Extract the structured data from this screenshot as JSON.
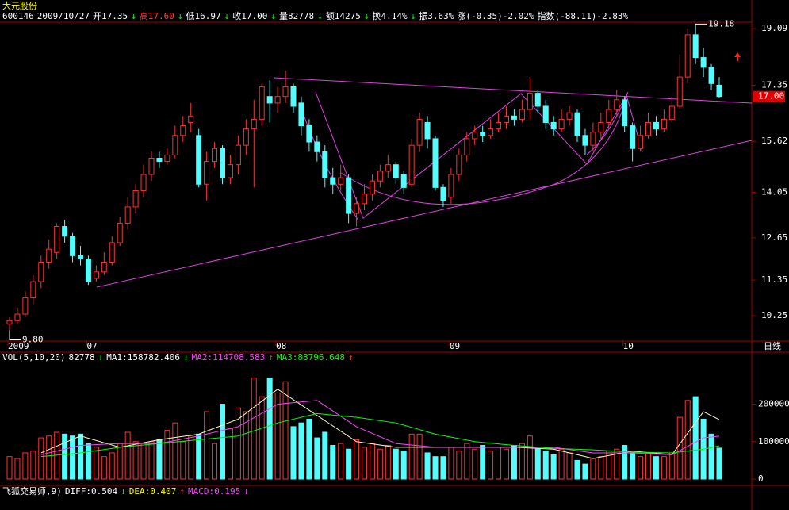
{
  "chart_data": {
    "type": "candlestick",
    "title": "大元股份",
    "info": [
      {
        "text": "600146",
        "color": "#ffffff"
      },
      {
        "text": "2009/10/27",
        "color": "#ffffff"
      },
      {
        "text": "开17.35",
        "color": "#ffffff"
      },
      {
        "text": "↓",
        "color": "#00ff00"
      },
      {
        "text": "高17.60",
        "color": "#ff4040"
      },
      {
        "text": "↓",
        "color": "#00ff00"
      },
      {
        "text": "低16.97",
        "color": "#ffffff"
      },
      {
        "text": "↓",
        "color": "#00ff00"
      },
      {
        "text": "收17.00",
        "color": "#ffffff"
      },
      {
        "text": "↓",
        "color": "#00ff00"
      },
      {
        "text": "量82778",
        "color": "#ffffff"
      },
      {
        "text": "↓",
        "color": "#00ff00"
      },
      {
        "text": "额14275",
        "color": "#ffffff"
      },
      {
        "text": "↓",
        "color": "#00ff00"
      },
      {
        "text": "换4.14%",
        "color": "#ffffff"
      },
      {
        "text": "↓",
        "color": "#00ff00"
      },
      {
        "text": "振3.63%",
        "color": "#ffffff"
      },
      {
        "text": "涨(-0.35)-2.02%",
        "color": "#ffffff"
      },
      {
        "text": "指数(-88.11)-2.83%",
        "color": "#ffffff"
      }
    ],
    "categories": [
      "2009",
      null,
      null,
      null,
      null,
      null,
      null,
      null,
      null,
      null,
      "07",
      null,
      null,
      null,
      null,
      null,
      null,
      null,
      null,
      null,
      null,
      null,
      null,
      null,
      null,
      null,
      null,
      null,
      null,
      null,
      null,
      null,
      null,
      null,
      "08",
      null,
      null,
      null,
      null,
      null,
      null,
      null,
      null,
      null,
      null,
      null,
      null,
      null,
      null,
      null,
      null,
      null,
      null,
      null,
      null,
      null,
      "09",
      null,
      null,
      null,
      null,
      null,
      null,
      null,
      null,
      null,
      null,
      null,
      null,
      null,
      null,
      null,
      null,
      null,
      null,
      null,
      null,
      null,
      "10",
      null,
      null,
      null,
      null,
      null,
      null,
      null,
      null,
      null,
      null,
      null,
      null
    ],
    "period_label": "日线",
    "open": [
      10.0,
      10.1,
      10.3,
      10.8,
      11.3,
      11.9,
      12.2,
      13.0,
      12.7,
      12.1,
      12.0,
      11.4,
      11.6,
      11.9,
      12.5,
      13.1,
      13.6,
      14.1,
      14.6,
      15.1,
      15.0,
      15.2,
      15.8,
      16.2,
      15.8,
      14.3,
      15.0,
      15.4,
      14.5,
      14.9,
      15.5,
      16.0,
      16.3,
      17.0,
      16.8,
      17.0,
      17.3,
      16.8,
      16.1,
      15.6,
      15.3,
      14.5,
      14.3,
      14.5,
      13.4,
      13.7,
      14.0,
      14.4,
      14.7,
      14.9,
      14.6,
      14.3,
      15.5,
      16.2,
      15.7,
      14.2,
      13.9,
      14.6,
      15.2,
      15.7,
      15.9,
      15.8,
      16.0,
      16.2,
      16.4,
      16.3,
      16.6,
      17.1,
      16.7,
      16.2,
      16.0,
      16.3,
      16.5,
      15.8,
      15.5,
      15.9,
      16.2,
      16.6,
      16.9,
      16.1,
      15.4,
      15.8,
      16.2,
      16.0,
      16.3,
      16.7,
      17.6,
      18.9,
      18.2,
      17.9,
      17.35
    ],
    "close": [
      10.1,
      10.3,
      10.8,
      11.3,
      11.9,
      12.3,
      13.0,
      12.7,
      12.1,
      12.0,
      11.3,
      11.6,
      11.9,
      12.5,
      13.1,
      13.6,
      14.1,
      14.6,
      15.1,
      15.0,
      15.2,
      15.8,
      16.1,
      16.4,
      14.3,
      15.0,
      15.4,
      14.5,
      14.9,
      15.5,
      16.0,
      16.3,
      17.3,
      16.8,
      17.0,
      17.3,
      16.7,
      16.1,
      15.6,
      15.3,
      14.5,
      14.3,
      14.5,
      13.4,
      13.7,
      14.0,
      14.4,
      14.7,
      14.9,
      14.5,
      14.2,
      15.5,
      16.3,
      15.7,
      14.2,
      13.8,
      14.6,
      15.2,
      15.7,
      15.9,
      15.8,
      16.0,
      16.2,
      16.4,
      16.3,
      16.6,
      17.1,
      16.7,
      16.2,
      16.0,
      16.3,
      16.5,
      15.8,
      15.5,
      15.9,
      16.2,
      16.6,
      16.9,
      16.1,
      15.4,
      15.8,
      16.2,
      16.0,
      16.3,
      16.7,
      17.6,
      18.9,
      18.2,
      17.9,
      17.4,
      17.0
    ],
    "high": [
      10.2,
      10.5,
      11.0,
      11.5,
      12.1,
      12.6,
      13.1,
      13.2,
      12.8,
      12.4,
      12.1,
      11.8,
      12.2,
      12.7,
      13.3,
      13.9,
      14.3,
      14.9,
      15.3,
      15.3,
      15.4,
      16.1,
      16.4,
      16.8,
      16.0,
      15.3,
      15.6,
      15.5,
      15.2,
      15.8,
      16.3,
      16.9,
      17.4,
      17.5,
      17.3,
      17.8,
      17.4,
      17.0,
      16.3,
      15.8,
      15.5,
      14.8,
      14.9,
      14.6,
      13.9,
      14.3,
      14.6,
      14.9,
      15.2,
      15.0,
      14.7,
      15.7,
      16.5,
      16.4,
      15.8,
      14.3,
      14.8,
      15.4,
      15.9,
      16.1,
      16.1,
      16.3,
      16.5,
      16.7,
      16.6,
      16.9,
      17.6,
      17.2,
      16.9,
      16.4,
      16.6,
      16.7,
      16.6,
      16.0,
      16.2,
      16.5,
      16.9,
      17.2,
      17.0,
      16.2,
      16.1,
      16.5,
      16.4,
      16.6,
      17.0,
      18.3,
      19.1,
      19.18,
      18.5,
      18.0,
      17.6
    ],
    "low": [
      9.8,
      10.0,
      10.2,
      10.6,
      11.1,
      11.7,
      12.0,
      12.5,
      11.9,
      11.8,
      11.2,
      11.3,
      11.5,
      11.8,
      12.4,
      12.9,
      13.4,
      13.9,
      14.4,
      14.8,
      14.9,
      15.1,
      15.6,
      15.9,
      14.2,
      13.8,
      14.8,
      14.3,
      14.3,
      14.6,
      15.2,
      14.2,
      16.1,
      16.2,
      16.5,
      16.8,
      16.5,
      15.8,
      15.3,
      15.0,
      14.2,
      14.0,
      14.1,
      13.1,
      13.0,
      13.5,
      13.8,
      14.2,
      14.5,
      14.3,
      14.0,
      14.2,
      15.3,
      15.4,
      14.1,
      13.6,
      13.7,
      14.4,
      15.0,
      15.5,
      15.6,
      15.7,
      15.9,
      16.0,
      16.1,
      16.2,
      16.3,
      16.5,
      16.0,
      15.8,
      15.9,
      16.1,
      15.6,
      15.2,
      15.3,
      15.7,
      16.0,
      16.4,
      15.9,
      15.0,
      15.3,
      15.7,
      15.8,
      15.9,
      16.2,
      16.6,
      17.4,
      18.0,
      17.6,
      17.2,
      16.97
    ],
    "volume": [
      60000,
      55000,
      70000,
      75000,
      110000,
      115000,
      125000,
      120000,
      115000,
      120000,
      95000,
      85000,
      60000,
      70000,
      95000,
      125000,
      100000,
      95000,
      100000,
      105000,
      130000,
      150000,
      100000,
      115000,
      120000,
      180000,
      95000,
      200000,
      135000,
      190000,
      180000,
      270000,
      220000,
      270000,
      230000,
      260000,
      140000,
      150000,
      160000,
      110000,
      125000,
      90000,
      95000,
      80000,
      105000,
      85000,
      95000,
      80000,
      90000,
      80000,
      75000,
      120000,
      120000,
      70000,
      60000,
      60000,
      85000,
      75000,
      95000,
      80000,
      90000,
      75000,
      85000,
      80000,
      90000,
      95000,
      115000,
      80000,
      75000,
      65000,
      80000,
      70000,
      50000,
      40000,
      55000,
      60000,
      75000,
      80000,
      90000,
      70000,
      60000,
      70000,
      60000,
      60000,
      70000,
      165000,
      210000,
      220000,
      160000,
      120000,
      82778
    ],
    "up_color": "#ff3232",
    "down_color": "#54fcfc",
    "ylim": [
      9.52,
      19.63
    ],
    "yticks": [
      19.09,
      17.35,
      15.62,
      14.05,
      12.65,
      11.35,
      10.25
    ],
    "annotations": [
      {
        "index": 87,
        "value": 19.18,
        "label": "19.18"
      },
      {
        "index": 0,
        "value": 9.8,
        "label": "9.80"
      }
    ],
    "last_price": {
      "value": 17,
      "label": "17.00"
    },
    "volume_panel": {
      "ylim": [
        0,
        305000
      ],
      "yticks": [
        0,
        100000,
        200000
      ],
      "header": [
        {
          "text": "VOL(5,10,20)",
          "color": "#ffffff"
        },
        {
          "text": "82778",
          "color": "#ffffff"
        },
        {
          "text": "↓",
          "color": "#00ff00"
        },
        {
          "text": "MA1:158782.406",
          "color": "#ffffff"
        },
        {
          "text": "↓",
          "color": "#00ff00"
        },
        {
          "text": "MA2:114708.583",
          "color": "#ff40ff"
        },
        {
          "text": "↑",
          "color": "#ff3232"
        },
        {
          "text": "MA3:88796.648",
          "color": "#00ff00"
        },
        {
          "text": "↑",
          "color": "#ff3232"
        }
      ],
      "x": [
        4,
        9,
        14,
        19,
        24,
        29,
        34,
        39,
        44,
        49,
        54,
        59,
        64,
        69,
        74,
        79,
        84,
        88,
        90
      ],
      "series": [
        {
          "name": "MA1",
          "color": "#ffffc0",
          "values": [
            70000,
            115000,
            85000,
            105000,
            120000,
            160000,
            240000,
            170000,
            100000,
            85000,
            85000,
            85000,
            85000,
            80000,
            55000,
            75000,
            65000,
            180000,
            158782
          ]
        },
        {
          "name": "MA2",
          "color": "#ff40ff",
          "values": [
            65000,
            90000,
            95000,
            95000,
            115000,
            140000,
            200000,
            210000,
            140000,
            95000,
            85000,
            85000,
            85000,
            85000,
            70000,
            70000,
            65000,
            110000,
            114709
          ]
        },
        {
          "name": "MA3",
          "color": "#00ff00",
          "values": [
            60000,
            70000,
            85000,
            95000,
            105000,
            115000,
            150000,
            175000,
            165000,
            150000,
            120000,
            100000,
            90000,
            82000,
            78000,
            72000,
            70000,
            80000,
            88797
          ]
        }
      ]
    },
    "macd_header": [
      {
        "text": "飞狐交易师,9)",
        "color": "#ffffff"
      },
      {
        "text": "DIFF:0.504",
        "color": "#ffffff"
      },
      {
        "text": "↓",
        "color": "#00ff00"
      },
      {
        "text": "DEA:0.407",
        "color": "#ffff00"
      },
      {
        "text": "↑",
        "color": "#ff3232"
      },
      {
        "text": "MACD:0.195",
        "color": "#ff40ff"
      },
      {
        "text": "↓",
        "color": "#ff40ff"
      }
    ]
  }
}
